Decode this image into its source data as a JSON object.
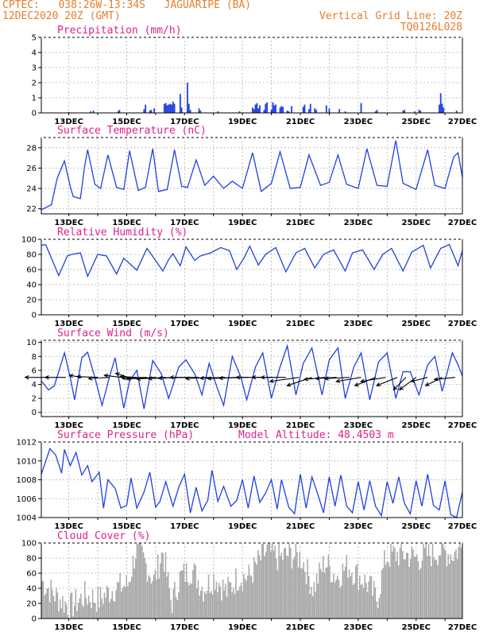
{
  "header": {
    "line1": "CPTEC:   038:26W-13:34S   JAGUARIPE (BA)",
    "line2": "12DEC2020 20Z (GMT)",
    "grid_note": "Vertical Grid Line: 20Z",
    "code": "TQ0126L028"
  },
  "colors": {
    "header": "#e87d2c",
    "title": "#e2208a",
    "line": "#2140e0",
    "cloud": "#a8a8a8",
    "wind": "#000000"
  },
  "x_tick_labels": [
    "13DEC",
    "15DEC",
    "17DEC",
    "19DEC",
    "21DEC",
    "23DEC",
    "25DEC",
    "27DEC"
  ],
  "chart_data": [
    {
      "id": "precip",
      "type": "bar",
      "title": "Precipitation (mm/h)",
      "ylim": [
        0,
        5
      ],
      "yticks": [
        0,
        1,
        2,
        3,
        4,
        5
      ],
      "x_days": [
        0.95,
        1.7,
        1.8,
        2.65,
        2.7,
        3.55,
        3.6,
        3.75,
        3.8,
        3.9,
        4.25,
        4.3,
        4.35,
        4.4,
        4.45,
        4.5,
        4.55,
        4.6,
        4.8,
        4.85,
        5.05,
        5.1,
        5.15,
        5.45,
        5.5,
        6.1,
        6.85,
        7.3,
        7.35,
        7.4,
        7.45,
        7.5,
        7.55,
        7.7,
        7.75,
        7.8,
        7.95,
        8.0,
        8.05,
        8.1,
        8.25,
        8.3,
        8.35,
        8.5,
        8.55,
        8.65,
        9.05,
        9.1,
        9.25,
        9.3,
        9.45,
        9.5,
        9.85,
        9.95,
        10.3,
        10.5,
        11.05,
        11.55,
        11.6,
        12.5,
        12.55,
        12.9,
        13.05,
        13.1,
        13.75,
        13.8,
        13.85,
        13.9,
        14.35
      ],
      "values": [
        0.05,
        0.1,
        0.15,
        0.1,
        0.2,
        0.25,
        0.55,
        0.15,
        0.2,
        0.3,
        0.6,
        0.65,
        0.5,
        0.55,
        0.6,
        0.55,
        0.75,
        0.6,
        1.25,
        0.35,
        2.0,
        0.6,
        0.2,
        0.3,
        0.15,
        0.1,
        0.1,
        0.35,
        0.25,
        0.55,
        0.65,
        0.3,
        0.5,
        0.2,
        0.6,
        0.7,
        0.2,
        0.7,
        0.5,
        0.55,
        0.35,
        0.45,
        0.4,
        0.15,
        0.1,
        0.45,
        0.4,
        0.55,
        0.25,
        0.6,
        0.3,
        0.2,
        0.5,
        0.3,
        0.25,
        0.1,
        0.65,
        0.1,
        0.2,
        0.15,
        0.2,
        0.1,
        0.2,
        0.15,
        0.55,
        1.3,
        0.6,
        0.35,
        0.15
      ]
    },
    {
      "id": "temp",
      "type": "line",
      "title": "Surface Temperature (nC)",
      "ylim": [
        21.5,
        29
      ],
      "yticks": [
        22,
        24,
        26,
        28
      ],
      "x_days": [
        0,
        0.35,
        0.55,
        0.8,
        1.0,
        1.1,
        1.35,
        1.5,
        1.6,
        1.85,
        2.05,
        2.3,
        2.6,
        2.85,
        3.05,
        3.35,
        3.6,
        3.85,
        4.05,
        4.35,
        4.6,
        4.85,
        5.05,
        5.35,
        5.65,
        5.95,
        6.3,
        6.6,
        6.95,
        7.3,
        7.6,
        7.95,
        8.25,
        8.6,
        8.95,
        9.25,
        9.65,
        9.95,
        10.25,
        10.55,
        10.95,
        11.25,
        11.6,
        11.95,
        12.25,
        12.5,
        12.95,
        13.35,
        13.6,
        13.95,
        14.25,
        14.4,
        14.55
      ],
      "values": [
        21.9,
        22.4,
        25.0,
        26.7,
        24.2,
        23.2,
        23.0,
        26.2,
        27.8,
        24.4,
        24.0,
        27.3,
        24.1,
        23.9,
        27.7,
        23.8,
        24.1,
        27.9,
        23.7,
        23.9,
        27.8,
        24.2,
        24.1,
        26.8,
        24.3,
        25.2,
        24.0,
        24.7,
        24.0,
        27.5,
        23.7,
        24.5,
        27.6,
        24.0,
        24.1,
        27.3,
        24.3,
        24.6,
        27.3,
        24.4,
        24.0,
        27.9,
        24.3,
        24.2,
        28.7,
        24.5,
        23.9,
        27.8,
        24.3,
        24.0,
        27.1,
        27.5,
        25.1
      ]
    },
    {
      "id": "rh",
      "type": "line",
      "title": "Relative Humidity (%)",
      "ylim": [
        0,
        100
      ],
      "yticks": [
        0,
        20,
        40,
        60,
        80,
        100
      ],
      "x_days": [
        0,
        0.15,
        0.6,
        0.9,
        1.05,
        1.35,
        1.6,
        1.95,
        2.25,
        2.6,
        2.85,
        3.3,
        3.65,
        3.8,
        4.2,
        4.4,
        4.55,
        4.8,
        5.0,
        5.3,
        5.5,
        5.85,
        6.2,
        6.5,
        6.75,
        7.0,
        7.2,
        7.5,
        7.75,
        8.1,
        8.45,
        8.8,
        9.1,
        9.45,
        9.75,
        10.1,
        10.5,
        10.75,
        11.1,
        11.5,
        11.8,
        12.1,
        12.5,
        12.8,
        13.2,
        13.45,
        13.8,
        14.1,
        14.4,
        14.55
      ],
      "values": [
        92,
        93,
        52,
        78,
        80,
        82,
        51,
        80,
        78,
        54,
        75,
        59,
        88,
        80,
        58,
        73,
        81,
        65,
        90,
        72,
        78,
        82,
        89,
        85,
        60,
        75,
        91,
        66,
        80,
        89,
        57,
        82,
        88,
        62,
        80,
        86,
        58,
        82,
        86,
        60,
        80,
        88,
        58,
        83,
        92,
        62,
        88,
        93,
        65,
        85
      ]
    },
    {
      "id": "wind",
      "type": "line",
      "title": "Surface Wind (m/s)",
      "ylim": [
        -0.6,
        10.3
      ],
      "yticks": [
        0,
        2,
        4,
        6,
        8,
        10
      ],
      "x_days": [
        0,
        0.25,
        0.45,
        0.8,
        1.0,
        1.15,
        1.4,
        1.6,
        1.85,
        2.1,
        2.35,
        2.55,
        2.85,
        3.05,
        3.3,
        3.55,
        3.85,
        4.15,
        4.4,
        4.75,
        5.0,
        5.3,
        5.55,
        5.8,
        6.05,
        6.3,
        6.6,
        6.9,
        7.1,
        7.4,
        7.65,
        7.95,
        8.25,
        8.5,
        8.8,
        9.05,
        9.35,
        9.7,
        9.95,
        10.25,
        10.5,
        10.8,
        11.05,
        11.35,
        11.65,
        11.95,
        12.25,
        12.5,
        12.75,
        13.05,
        13.35,
        13.6,
        13.85,
        14.2,
        14.4,
        14.55
      ],
      "values": [
        4.5,
        3.2,
        3.8,
        8.5,
        5.0,
        1.8,
        7.8,
        8.6,
        5.0,
        1.0,
        5.0,
        7.8,
        0.6,
        4.5,
        6.0,
        0.5,
        7.4,
        5.5,
        2.0,
        6.5,
        7.5,
        5.5,
        2.5,
        7.0,
        3.8,
        1.0,
        8.0,
        5.0,
        1.8,
        6.5,
        8.5,
        2.0,
        6.5,
        9.5,
        2.5,
        7.0,
        9.2,
        2.5,
        7.5,
        9.2,
        2.0,
        6.5,
        8.5,
        1.8,
        7.2,
        8.5,
        2.0,
        5.8,
        5.8,
        2.5,
        6.8,
        8.0,
        3.0,
        8.5,
        6.8,
        5.2
      ],
      "vectors_x_days": [
        0.3,
        0.85,
        1.4,
        1.95,
        2.35,
        2.75,
        3.0,
        3.3,
        3.65,
        3.95,
        4.3,
        4.7,
        5.05,
        5.45,
        5.85,
        6.35,
        6.75,
        7.15,
        7.6,
        8.0,
        8.45,
        8.9,
        9.35,
        9.8,
        10.2,
        10.65,
        11.05,
        11.55,
        11.9,
        12.3,
        12.6,
        12.95,
        13.35,
        13.85,
        14.3
      ],
      "vectors_u": [
        -6,
        -5,
        -3,
        -5,
        -5,
        -4,
        -3,
        -4,
        -6,
        -7,
        -7,
        -7,
        -7,
        -7,
        -6,
        -6,
        -7,
        -7,
        -6,
        -5,
        -6,
        -7,
        -6,
        -5,
        -5,
        -6,
        -6,
        -5,
        -6,
        -5,
        -3,
        -4,
        -4,
        -4,
        -5
      ],
      "vectors_v": [
        0,
        0,
        0.5,
        0.2,
        -0.3,
        0.5,
        1.0,
        0.2,
        -0.2,
        -0.4,
        -0.4,
        -0.3,
        -0.2,
        0,
        -0.3,
        -0.2,
        -0.3,
        -0.2,
        0,
        0,
        0,
        -1.0,
        -2.0,
        -0.5,
        -0.3,
        -0.3,
        -1.0,
        -2.0,
        -1.0,
        -2.0,
        -3.0,
        -3.0,
        -1.0,
        -2.0,
        -0.5
      ]
    },
    {
      "id": "pressure",
      "type": "line",
      "title": "Surface Pressure (hPa)",
      "subtitle": "Model Altitude: 48.4503 m",
      "ylim": [
        1004,
        1012
      ],
      "yticks": [
        1004,
        1006,
        1008,
        1010,
        1012
      ],
      "x_days": [
        0,
        0.3,
        0.5,
        0.7,
        0.8,
        1.0,
        1.2,
        1.4,
        1.6,
        1.75,
        2.0,
        2.15,
        2.3,
        2.55,
        2.75,
        2.95,
        3.1,
        3.3,
        3.55,
        3.75,
        3.95,
        4.1,
        4.3,
        4.55,
        4.75,
        4.95,
        5.15,
        5.35,
        5.55,
        5.75,
        5.9,
        6.1,
        6.3,
        6.55,
        6.75,
        6.95,
        7.15,
        7.35,
        7.55,
        7.75,
        7.95,
        8.15,
        8.3,
        8.55,
        8.75,
        8.95,
        9.15,
        9.35,
        9.55,
        9.75,
        9.95,
        10.15,
        10.35,
        10.55,
        10.75,
        10.95,
        11.15,
        11.35,
        11.55,
        11.75,
        11.95,
        12.15,
        12.35,
        12.55,
        12.75,
        12.95,
        13.15,
        13.35,
        13.55,
        13.75,
        13.95,
        14.15,
        14.35,
        14.55
      ],
      "values": [
        1008.6,
        1011.3,
        1010.6,
        1008.7,
        1011.2,
        1009.5,
        1010.9,
        1008.5,
        1009.5,
        1007.8,
        1008.8,
        1005.0,
        1008.0,
        1007.1,
        1005.0,
        1005.3,
        1008.2,
        1005.0,
        1006.7,
        1008.8,
        1005.1,
        1005.7,
        1007.8,
        1005.2,
        1007.2,
        1008.6,
        1004.5,
        1007.2,
        1004.7,
        1005.8,
        1009.0,
        1005.7,
        1007.3,
        1005.2,
        1005.8,
        1008.0,
        1005.0,
        1008.4,
        1005.6,
        1006.6,
        1008.0,
        1004.9,
        1008.0,
        1005.1,
        1004.4,
        1008.6,
        1005.0,
        1008.3,
        1006.5,
        1004.5,
        1008.3,
        1005.2,
        1008.5,
        1005.2,
        1004.5,
        1007.8,
        1004.8,
        1007.9,
        1005.2,
        1004.2,
        1007.8,
        1005.5,
        1008.3,
        1005.5,
        1004.4,
        1007.9,
        1005.2,
        1008.6,
        1005.3,
        1004.8,
        1007.9,
        1004.3,
        1004.0,
        1006.7
      ]
    },
    {
      "id": "cloud",
      "type": "bar",
      "title": "Cloud Cover (%)",
      "ylim": [
        0,
        100
      ],
      "yticks": [
        0,
        20,
        40,
        60,
        80,
        100
      ],
      "x_days": [
        0,
        0.5,
        1.0,
        1.5,
        2.0,
        2.5,
        3.0,
        3.3,
        3.5,
        3.9,
        4.2,
        4.5,
        4.8,
        5.2,
        5.6,
        6.0,
        6.4,
        6.8,
        7.2,
        7.5,
        7.8,
        8.2,
        8.6,
        9.0,
        9.4,
        9.8,
        10.2,
        10.6,
        11.0,
        11.3,
        11.6,
        11.9,
        12.2,
        12.6,
        13.0,
        13.4,
        13.8,
        14.2,
        14.55
      ],
      "values": [
        50,
        30,
        15,
        30,
        25,
        40,
        45,
        95,
        80,
        50,
        90,
        20,
        55,
        65,
        40,
        55,
        35,
        55,
        55,
        75,
        90,
        80,
        85,
        80,
        40,
        75,
        55,
        70,
        55,
        45,
        25,
        80,
        85,
        85,
        80,
        85,
        90,
        85,
        95
      ]
    }
  ]
}
